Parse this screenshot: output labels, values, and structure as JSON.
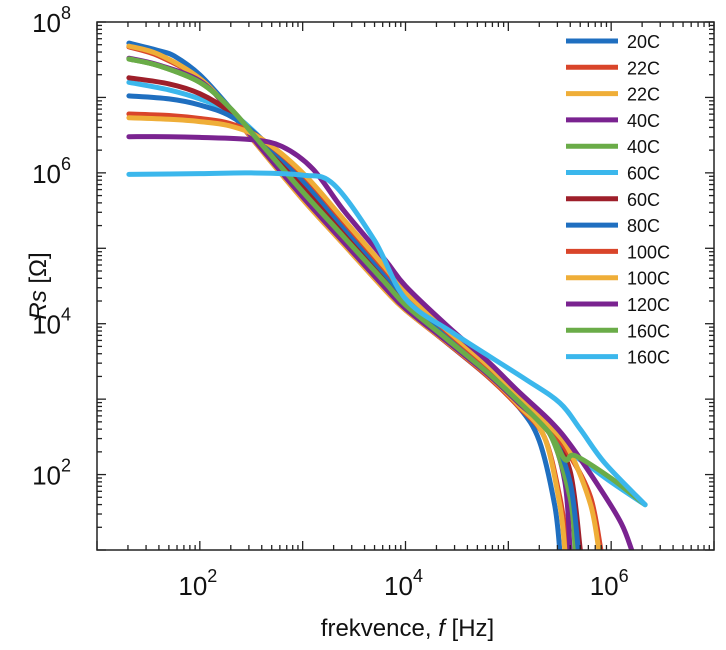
{
  "chart_data": {
    "type": "line",
    "title": "",
    "xlabel": "frekvence, f [Hz]",
    "xlabel_parts": {
      "prefix": "frekvence, ",
      "italic": "f",
      "suffix": " [Hz]"
    },
    "ylabel": "Rs [Ω]",
    "ylabel_parts": {
      "italic": "Rs",
      "suffix": " [Ω]"
    },
    "xscale": "log",
    "yscale": "log",
    "xlim": [
      10,
      10000000
    ],
    "ylim": [
      10,
      100000000
    ],
    "x_ticks": [
      {
        "value": 100,
        "base": "10",
        "exp": "2"
      },
      {
        "value": 10000,
        "base": "10",
        "exp": "4"
      },
      {
        "value": 1000000,
        "base": "10",
        "exp": "6"
      }
    ],
    "y_ticks": [
      {
        "value": 100,
        "base": "10",
        "exp": "2"
      },
      {
        "value": 10000,
        "base": "10",
        "exp": "4"
      },
      {
        "value": 1000000,
        "base": "10",
        "exp": "6"
      },
      {
        "value": 100000000,
        "base": "10",
        "exp": "8"
      }
    ],
    "grid": false,
    "legend_position": "top-right",
    "series_note": "points are [log10(f/Hz), log10(Rs/Ohm)] estimated from the figure",
    "series": [
      {
        "name": "20C",
        "color": "#1f6fc0",
        "points": [
          [
            1.31,
            7.72
          ],
          [
            1.6,
            7.62
          ],
          [
            1.75,
            7.55
          ],
          [
            2.0,
            7.3
          ],
          [
            2.3,
            6.85
          ],
          [
            2.6,
            6.35
          ],
          [
            3.0,
            5.7
          ],
          [
            3.4,
            5.1
          ],
          [
            3.8,
            4.5
          ],
          [
            4.0,
            4.2
          ],
          [
            4.4,
            3.75
          ],
          [
            4.8,
            3.3
          ],
          [
            5.1,
            2.9
          ],
          [
            5.3,
            2.45
          ],
          [
            5.45,
            1.6
          ],
          [
            5.5,
            1.0
          ]
        ]
      },
      {
        "name": "22C",
        "color": "#d9452a",
        "points": [
          [
            1.31,
            7.67
          ],
          [
            1.6,
            7.55
          ],
          [
            2.0,
            7.25
          ],
          [
            2.3,
            6.8
          ],
          [
            2.6,
            6.3
          ],
          [
            3.0,
            5.65
          ],
          [
            3.4,
            5.05
          ],
          [
            3.8,
            4.45
          ],
          [
            4.0,
            4.18
          ],
          [
            4.4,
            3.75
          ],
          [
            4.8,
            3.3
          ],
          [
            5.1,
            2.9
          ],
          [
            5.35,
            2.5
          ],
          [
            5.5,
            1.7
          ],
          [
            5.58,
            1.0
          ]
        ]
      },
      {
        "name": "22C",
        "color": "#efae38",
        "points": [
          [
            1.31,
            7.68
          ],
          [
            1.6,
            7.57
          ],
          [
            2.0,
            7.25
          ],
          [
            2.3,
            6.82
          ],
          [
            2.6,
            6.3
          ],
          [
            3.0,
            5.65
          ],
          [
            3.4,
            5.05
          ],
          [
            3.8,
            4.45
          ],
          [
            4.0,
            4.18
          ],
          [
            4.4,
            3.76
          ],
          [
            4.8,
            3.32
          ],
          [
            5.1,
            2.92
          ],
          [
            5.35,
            2.5
          ],
          [
            5.5,
            1.6
          ],
          [
            5.55,
            1.0
          ]
        ]
      },
      {
        "name": "40C",
        "color": "#7a2390",
        "points": [
          [
            1.31,
            7.52
          ],
          [
            1.6,
            7.43
          ],
          [
            2.0,
            7.22
          ],
          [
            2.3,
            6.82
          ],
          [
            2.6,
            6.32
          ],
          [
            3.0,
            5.68
          ],
          [
            3.4,
            5.08
          ],
          [
            3.8,
            4.48
          ],
          [
            4.0,
            4.2
          ],
          [
            4.4,
            3.77
          ],
          [
            4.8,
            3.33
          ],
          [
            5.1,
            2.95
          ],
          [
            5.4,
            2.55
          ],
          [
            5.55,
            1.9
          ],
          [
            5.6,
            1.0
          ]
        ]
      },
      {
        "name": "40C",
        "color": "#6aac48",
        "points": [
          [
            1.31,
            7.51
          ],
          [
            1.6,
            7.42
          ],
          [
            2.0,
            7.2
          ],
          [
            2.3,
            6.85
          ],
          [
            2.6,
            6.38
          ],
          [
            3.0,
            5.75
          ],
          [
            3.4,
            5.15
          ],
          [
            3.8,
            4.55
          ],
          [
            4.0,
            4.25
          ],
          [
            4.4,
            3.8
          ],
          [
            4.8,
            3.35
          ],
          [
            5.1,
            2.97
          ],
          [
            5.4,
            2.55
          ],
          [
            5.6,
            1.7
          ],
          [
            5.65,
            1.0
          ]
        ]
      },
      {
        "name": "60C",
        "color": "#3bb7ec",
        "points": [
          [
            1.31,
            7.2
          ],
          [
            1.7,
            7.1
          ],
          [
            2.0,
            6.98
          ],
          [
            2.3,
            6.8
          ],
          [
            2.6,
            6.45
          ],
          [
            3.0,
            5.85
          ],
          [
            3.4,
            5.25
          ],
          [
            3.8,
            4.65
          ],
          [
            4.0,
            4.33
          ],
          [
            4.4,
            3.85
          ],
          [
            4.8,
            3.4
          ],
          [
            5.1,
            3.0
          ],
          [
            5.4,
            2.6
          ],
          [
            5.6,
            2.3
          ],
          [
            5.8,
            2.1
          ],
          [
            6.0,
            1.9
          ],
          [
            6.33,
            1.6
          ]
        ]
      },
      {
        "name": "60C",
        "color": "#9e1f2a",
        "points": [
          [
            1.31,
            7.26
          ],
          [
            1.7,
            7.18
          ],
          [
            2.0,
            7.05
          ],
          [
            2.3,
            6.8
          ],
          [
            2.6,
            6.42
          ],
          [
            3.0,
            5.82
          ],
          [
            3.4,
            5.2
          ],
          [
            3.8,
            4.6
          ],
          [
            4.0,
            4.3
          ],
          [
            4.4,
            3.83
          ],
          [
            4.8,
            3.38
          ],
          [
            5.1,
            2.98
          ],
          [
            5.4,
            2.55
          ],
          [
            5.6,
            2.05
          ],
          [
            5.7,
            1.0
          ]
        ]
      },
      {
        "name": "80C",
        "color": "#1f6fc0",
        "points": [
          [
            1.31,
            7.02
          ],
          [
            1.7,
            6.98
          ],
          [
            2.0,
            6.9
          ],
          [
            2.3,
            6.75
          ],
          [
            2.6,
            6.45
          ],
          [
            3.0,
            5.9
          ],
          [
            3.4,
            5.28
          ],
          [
            3.8,
            4.66
          ],
          [
            4.0,
            4.35
          ],
          [
            4.4,
            3.86
          ],
          [
            4.8,
            3.4
          ],
          [
            5.1,
            3.0
          ],
          [
            5.4,
            2.6
          ],
          [
            5.6,
            1.9
          ],
          [
            5.68,
            1.0
          ]
        ]
      },
      {
        "name": "100C",
        "color": "#d9452a",
        "points": [
          [
            1.31,
            6.78
          ],
          [
            1.7,
            6.76
          ],
          [
            2.0,
            6.72
          ],
          [
            2.3,
            6.65
          ],
          [
            2.6,
            6.45
          ],
          [
            3.0,
            5.98
          ],
          [
            3.4,
            5.35
          ],
          [
            3.8,
            4.72
          ],
          [
            4.0,
            4.4
          ],
          [
            4.4,
            3.9
          ],
          [
            4.8,
            3.43
          ],
          [
            5.1,
            3.03
          ],
          [
            5.4,
            2.62
          ],
          [
            5.6,
            2.25
          ],
          [
            5.8,
            1.7
          ],
          [
            5.9,
            1.0
          ]
        ]
      },
      {
        "name": "100C",
        "color": "#efae38",
        "points": [
          [
            1.31,
            6.73
          ],
          [
            1.7,
            6.71
          ],
          [
            2.0,
            6.68
          ],
          [
            2.3,
            6.62
          ],
          [
            2.6,
            6.45
          ],
          [
            3.0,
            6.0
          ],
          [
            3.4,
            5.38
          ],
          [
            3.8,
            4.75
          ],
          [
            4.0,
            4.42
          ],
          [
            4.4,
            3.92
          ],
          [
            4.8,
            3.45
          ],
          [
            5.1,
            3.05
          ],
          [
            5.4,
            2.65
          ],
          [
            5.6,
            2.3
          ],
          [
            5.8,
            1.6
          ],
          [
            5.88,
            1.0
          ]
        ]
      },
      {
        "name": "120C",
        "color": "#7a2390",
        "points": [
          [
            1.31,
            6.48
          ],
          [
            1.7,
            6.48
          ],
          [
            2.0,
            6.47
          ],
          [
            2.5,
            6.44
          ],
          [
            2.8,
            6.35
          ],
          [
            3.1,
            6.05
          ],
          [
            3.4,
            5.5
          ],
          [
            3.8,
            4.85
          ],
          [
            4.0,
            4.5
          ],
          [
            4.4,
            3.98
          ],
          [
            4.8,
            3.5
          ],
          [
            5.1,
            3.1
          ],
          [
            5.4,
            2.72
          ],
          [
            5.6,
            2.4
          ],
          [
            5.9,
            1.8
          ],
          [
            6.1,
            1.35
          ],
          [
            6.2,
            1.0
          ]
        ]
      },
      {
        "name": "160C",
        "color": "#6aac48",
        "points": [
          [
            1.31,
            7.51
          ],
          [
            1.6,
            7.42
          ],
          [
            2.0,
            7.2
          ],
          [
            2.3,
            6.85
          ],
          [
            2.6,
            6.38
          ],
          [
            3.0,
            5.75
          ],
          [
            3.4,
            5.15
          ],
          [
            3.8,
            4.55
          ],
          [
            4.0,
            4.25
          ],
          [
            4.4,
            3.8
          ],
          [
            4.8,
            3.35
          ],
          [
            5.1,
            2.97
          ],
          [
            5.4,
            2.55
          ],
          [
            5.55,
            2.2
          ],
          [
            5.65,
            2.25
          ],
          [
            6.0,
            1.95
          ],
          [
            6.33,
            1.6
          ]
        ]
      },
      {
        "name": "160C",
        "color": "#3bb7ec",
        "points": [
          [
            1.31,
            5.98
          ],
          [
            2.0,
            5.99
          ],
          [
            2.5,
            6.0
          ],
          [
            3.0,
            5.97
          ],
          [
            3.3,
            5.85
          ],
          [
            3.7,
            5.1
          ],
          [
            4.0,
            4.33
          ],
          [
            4.47,
            3.87
          ],
          [
            5.16,
            3.27
          ],
          [
            5.5,
            2.95
          ],
          [
            5.7,
            2.6
          ],
          [
            5.94,
            2.15
          ],
          [
            6.33,
            1.6
          ]
        ]
      }
    ]
  }
}
